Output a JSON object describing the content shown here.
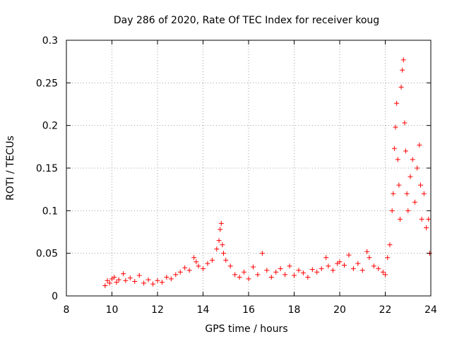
{
  "chart_data": {
    "type": "scatter",
    "title": "Day 286 of 2020, Rate Of TEC Index for receiver koug",
    "xlabel": "GPS time / hours",
    "ylabel": "ROTI / TECUs",
    "xlim": [
      8,
      24
    ],
    "ylim": [
      0,
      0.3
    ],
    "xticks": [
      "8",
      "10",
      "12",
      "14",
      "16",
      "18",
      "20",
      "22",
      "24"
    ],
    "yticks": [
      "0",
      "0.05",
      "0.1",
      "0.15",
      "0.2",
      "0.25",
      "0.3"
    ],
    "grid": true,
    "marker": "+",
    "series_color": "#ff0000",
    "series": [
      {
        "name": "ROTI",
        "points": [
          [
            9.7,
            0.012
          ],
          [
            9.8,
            0.018
          ],
          [
            9.9,
            0.015
          ],
          [
            10.0,
            0.02
          ],
          [
            10.1,
            0.022
          ],
          [
            10.2,
            0.016
          ],
          [
            10.3,
            0.019
          ],
          [
            10.5,
            0.026
          ],
          [
            10.6,
            0.018
          ],
          [
            10.8,
            0.021
          ],
          [
            11.0,
            0.017
          ],
          [
            11.2,
            0.024
          ],
          [
            11.4,
            0.015
          ],
          [
            11.6,
            0.019
          ],
          [
            11.8,
            0.014
          ],
          [
            12.0,
            0.018
          ],
          [
            12.2,
            0.016
          ],
          [
            12.4,
            0.022
          ],
          [
            12.6,
            0.02
          ],
          [
            12.8,
            0.025
          ],
          [
            13.0,
            0.028
          ],
          [
            13.2,
            0.033
          ],
          [
            13.4,
            0.03
          ],
          [
            13.6,
            0.045
          ],
          [
            13.7,
            0.04
          ],
          [
            13.8,
            0.035
          ],
          [
            14.0,
            0.032
          ],
          [
            14.2,
            0.038
          ],
          [
            14.4,
            0.042
          ],
          [
            14.6,
            0.055
          ],
          [
            14.7,
            0.065
          ],
          [
            14.75,
            0.078
          ],
          [
            14.8,
            0.085
          ],
          [
            14.85,
            0.06
          ],
          [
            14.9,
            0.05
          ],
          [
            15.0,
            0.042
          ],
          [
            15.2,
            0.035
          ],
          [
            15.4,
            0.025
          ],
          [
            15.6,
            0.022
          ],
          [
            15.8,
            0.028
          ],
          [
            16.0,
            0.02
          ],
          [
            16.2,
            0.034
          ],
          [
            16.4,
            0.025
          ],
          [
            16.6,
            0.05
          ],
          [
            16.8,
            0.03
          ],
          [
            17.0,
            0.022
          ],
          [
            17.2,
            0.028
          ],
          [
            17.4,
            0.032
          ],
          [
            17.6,
            0.025
          ],
          [
            17.8,
            0.035
          ],
          [
            18.0,
            0.024
          ],
          [
            18.2,
            0.03
          ],
          [
            18.4,
            0.027
          ],
          [
            18.6,
            0.022
          ],
          [
            18.8,
            0.031
          ],
          [
            19.0,
            0.028
          ],
          [
            19.2,
            0.032
          ],
          [
            19.4,
            0.045
          ],
          [
            19.5,
            0.035
          ],
          [
            19.7,
            0.03
          ],
          [
            19.9,
            0.038
          ],
          [
            20.0,
            0.04
          ],
          [
            20.2,
            0.036
          ],
          [
            20.4,
            0.048
          ],
          [
            20.6,
            0.032
          ],
          [
            20.8,
            0.038
          ],
          [
            21.0,
            0.03
          ],
          [
            21.2,
            0.052
          ],
          [
            21.3,
            0.045
          ],
          [
            21.5,
            0.035
          ],
          [
            21.7,
            0.032
          ],
          [
            21.9,
            0.028
          ],
          [
            22.0,
            0.025
          ],
          [
            22.1,
            0.045
          ],
          [
            22.2,
            0.06
          ],
          [
            22.3,
            0.1
          ],
          [
            22.35,
            0.12
          ],
          [
            22.4,
            0.173
          ],
          [
            22.45,
            0.198
          ],
          [
            22.5,
            0.226
          ],
          [
            22.55,
            0.16
          ],
          [
            22.6,
            0.13
          ],
          [
            22.65,
            0.09
          ],
          [
            22.7,
            0.245
          ],
          [
            22.75,
            0.265
          ],
          [
            22.8,
            0.277
          ],
          [
            22.85,
            0.203
          ],
          [
            22.9,
            0.17
          ],
          [
            22.95,
            0.12
          ],
          [
            23.0,
            0.1
          ],
          [
            23.1,
            0.14
          ],
          [
            23.2,
            0.16
          ],
          [
            23.3,
            0.11
          ],
          [
            23.4,
            0.15
          ],
          [
            23.5,
            0.177
          ],
          [
            23.55,
            0.13
          ],
          [
            23.6,
            0.09
          ],
          [
            23.7,
            0.12
          ],
          [
            23.8,
            0.08
          ],
          [
            23.9,
            0.09
          ],
          [
            23.95,
            0.05
          ]
        ]
      }
    ]
  }
}
